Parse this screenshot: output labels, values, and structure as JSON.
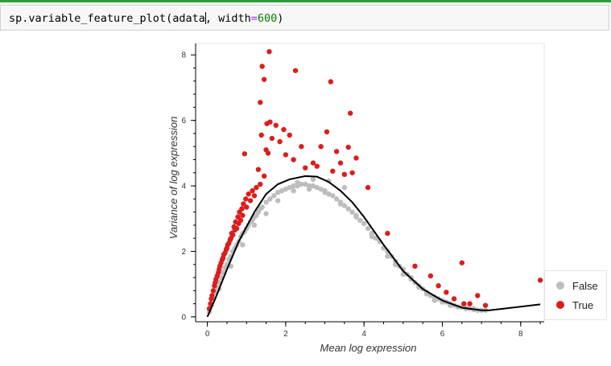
{
  "cell": {
    "code_prefix": "sp.variable_feature_plot(adata",
    "code_mid": ", width",
    "code_eq": "=",
    "code_num": "600",
    "code_suffix": ")"
  },
  "chart_data": {
    "type": "scatter",
    "xlabel": "Mean log expression",
    "ylabel": "Variance of log expression",
    "xlim": [
      -0.3,
      8.6
    ],
    "ylim": [
      -0.15,
      8.35
    ],
    "xticks": [
      0,
      2,
      4,
      6,
      8
    ],
    "yticks": [
      0,
      2,
      4,
      6,
      8
    ],
    "grid": false,
    "legend_position": "bottom-right",
    "series": [
      {
        "name": "False",
        "color": "#bdbdbd",
        "values_x": [
          0.05,
          0.1,
          0.15,
          0.2,
          0.25,
          0.3,
          0.35,
          0.4,
          0.45,
          0.5,
          0.55,
          0.6,
          0.65,
          0.7,
          0.75,
          0.8,
          0.85,
          0.9,
          0.95,
          1.0,
          1.05,
          1.1,
          1.15,
          1.2,
          1.25,
          1.3,
          1.35,
          1.4,
          1.5,
          1.6,
          1.7,
          1.8,
          1.9,
          2.0,
          2.1,
          2.2,
          2.3,
          2.4,
          2.5,
          2.6,
          2.7,
          2.8,
          2.9,
          3.0,
          3.1,
          3.2,
          3.3,
          3.4,
          3.5,
          3.6,
          3.7,
          3.8,
          3.9,
          4.0,
          4.1,
          4.2,
          4.3,
          4.4,
          4.5,
          4.6,
          4.7,
          4.8,
          4.9,
          5.0,
          5.1,
          5.2,
          5.3,
          5.4,
          5.5,
          5.6,
          5.7,
          5.8,
          5.9,
          6.0,
          6.1,
          6.2,
          6.3,
          6.4,
          6.5,
          6.6,
          6.7,
          6.8,
          6.9,
          7.0,
          7.1,
          0.3,
          0.6,
          0.9,
          1.2,
          1.5,
          1.8,
          2.2,
          2.6,
          3.0,
          3.4,
          3.8,
          4.2,
          4.6,
          5.0,
          5.4,
          5.8,
          6.2,
          6.6,
          2.3,
          2.7,
          3.1,
          3.5,
          4.4,
          4.8,
          5.2,
          5.6,
          6.0,
          6.4,
          6.8
        ],
        "values_y": [
          0.15,
          0.35,
          0.55,
          0.75,
          0.9,
          1.05,
          1.2,
          1.35,
          1.5,
          1.6,
          1.75,
          1.85,
          2.0,
          2.1,
          2.2,
          2.3,
          2.45,
          2.55,
          2.6,
          2.7,
          2.8,
          2.9,
          2.95,
          3.05,
          3.1,
          3.2,
          3.3,
          3.35,
          3.5,
          3.6,
          3.7,
          3.8,
          3.85,
          3.9,
          3.95,
          4.0,
          4.0,
          4.05,
          4.05,
          4.0,
          4.0,
          3.95,
          3.9,
          3.85,
          3.75,
          3.7,
          3.6,
          3.5,
          3.4,
          3.3,
          3.2,
          3.1,
          2.95,
          2.85,
          2.7,
          2.55,
          2.4,
          2.3,
          2.1,
          2.0,
          1.85,
          1.7,
          1.55,
          1.45,
          1.3,
          1.2,
          1.05,
          0.95,
          0.85,
          0.75,
          0.65,
          0.6,
          0.55,
          0.5,
          0.45,
          0.4,
          0.35,
          0.3,
          0.3,
          0.25,
          0.25,
          0.22,
          0.2,
          0.2,
          0.2,
          0.85,
          1.55,
          2.2,
          2.8,
          3.15,
          3.55,
          3.85,
          3.9,
          3.8,
          3.45,
          3.05,
          2.45,
          1.85,
          1.3,
          0.9,
          0.5,
          0.35,
          0.28,
          4.1,
          4.2,
          4.15,
          3.95,
          2.3,
          1.6,
          1.15,
          0.7,
          0.45,
          0.3,
          0.25
        ]
      },
      {
        "name": "True",
        "color": "#dd1c1c",
        "values_x": [
          1.58,
          1.4,
          1.45,
          2.25,
          1.35,
          3.15,
          3.65,
          1.6,
          1.75,
          1.95,
          1.52,
          1.38,
          3.05,
          1.65,
          1.85,
          2.1,
          2.4,
          3.6,
          1.5,
          1.55,
          2.0,
          2.2,
          2.9,
          3.3,
          3.8,
          0.95,
          2.8,
          3.4,
          3.7,
          1.3,
          1.45,
          2.5,
          2.7,
          3.2,
          3.5,
          4.1,
          0.6,
          0.7,
          0.8,
          0.9,
          1.0,
          1.1,
          1.2,
          0.5,
          0.55,
          0.65,
          0.75,
          0.85,
          0.4,
          0.45,
          0.3,
          0.35,
          0.2,
          0.25,
          0.15,
          0.1,
          0.05,
          0.08,
          0.12,
          0.18,
          0.22,
          0.28,
          0.32,
          0.38,
          0.42,
          0.48,
          0.52,
          0.58,
          0.62,
          0.68,
          0.72,
          0.78,
          0.82,
          0.88,
          0.92,
          0.98,
          1.05,
          1.15,
          1.25,
          1.35,
          4.6,
          5.3,
          5.7,
          5.9,
          6.1,
          6.3,
          6.5,
          6.9,
          7.1,
          6.7,
          6.55,
          8.5
        ],
        "values_y": [
          8.1,
          7.65,
          7.25,
          7.52,
          6.55,
          7.18,
          6.22,
          5.95,
          5.85,
          5.72,
          5.9,
          5.55,
          5.65,
          5.45,
          5.35,
          5.55,
          5.2,
          5.18,
          5.1,
          5.0,
          4.95,
          4.8,
          5.2,
          5.05,
          4.85,
          4.98,
          4.6,
          4.7,
          4.4,
          4.5,
          4.3,
          4.55,
          4.7,
          4.45,
          4.35,
          3.95,
          2.4,
          2.65,
          2.85,
          3.1,
          3.35,
          3.55,
          3.7,
          2.1,
          2.25,
          2.5,
          2.7,
          2.95,
          1.8,
          1.95,
          1.45,
          1.65,
          1.05,
          1.25,
          0.8,
          0.55,
          0.25,
          0.4,
          0.65,
          0.95,
          1.15,
          1.35,
          1.55,
          1.75,
          1.9,
          2.05,
          2.2,
          2.35,
          2.55,
          2.75,
          2.9,
          3.05,
          3.2,
          3.3,
          3.45,
          3.6,
          3.75,
          3.85,
          3.95,
          4.05,
          2.55,
          1.55,
          1.25,
          0.95,
          0.75,
          0.55,
          1.65,
          0.65,
          0.35,
          0.4,
          0.4,
          1.12
        ]
      }
    ],
    "trend_x": [
      0,
      0.2,
      0.5,
      0.8,
      1.2,
      1.5,
      1.8,
      2.1,
      2.5,
      2.8,
      3.1,
      3.4,
      3.7,
      4.0,
      4.5,
      5.0,
      5.5,
      6.0,
      6.5,
      7.0,
      7.2,
      8.5
    ],
    "trend_y": [
      0,
      0.55,
      1.45,
      2.3,
      3.2,
      3.75,
      4.05,
      4.2,
      4.3,
      4.28,
      4.12,
      3.85,
      3.5,
      3.05,
      2.2,
      1.4,
      0.85,
      0.5,
      0.28,
      0.2,
      0.2,
      0.38
    ]
  }
}
